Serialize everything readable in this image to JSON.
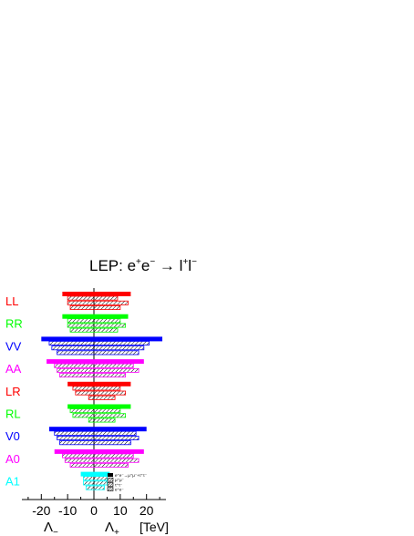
{
  "chart_data": {
    "type": "bar",
    "title": {
      "prefix": "LEP:  e",
      "sup1": "+",
      "mid1": "e",
      "sup2": "−",
      "arrow": " →  l",
      "sup3": "+",
      "mid2": "l",
      "sup4": "−"
    },
    "xlim": [
      -26,
      26
    ],
    "x_ticks": [
      -20,
      -10,
      0,
      10,
      20
    ],
    "x_tick_labels": [
      "-20",
      "-10",
      "0",
      "10",
      "20"
    ],
    "xlabel_minus": "Λ",
    "xlabel_minus_sub": "−",
    "xlabel_plus": "Λ",
    "xlabel_plus_sub": "+",
    "xlabel_unit": "[TeV]",
    "legend_entries": [
      "e⁺e⁻→μ⁺μ⁻+τ⁺τ⁻",
      "μ⁺μ⁻",
      "τ⁺τ⁻",
      "e⁺e⁻"
    ],
    "models": [
      {
        "name": "LL",
        "color": "#ff0000",
        "bars": [
          [
            -12,
            14
          ],
          [
            -10,
            9
          ],
          [
            -10,
            13
          ],
          [
            -9,
            10
          ]
        ]
      },
      {
        "name": "RR",
        "color": "#00ff00",
        "bars": [
          [
            -12,
            13
          ],
          [
            -10,
            10
          ],
          [
            -10,
            12
          ],
          [
            -9,
            9
          ]
        ]
      },
      {
        "name": "VV",
        "color": "#0000ff",
        "bars": [
          [
            -20,
            26
          ],
          [
            -17,
            21
          ],
          [
            -16,
            19
          ],
          [
            -14,
            17
          ]
        ]
      },
      {
        "name": "AA",
        "color": "#ff00ff",
        "bars": [
          [
            -18,
            19
          ],
          [
            -15,
            15
          ],
          [
            -14,
            17
          ],
          [
            -13,
            12
          ]
        ]
      },
      {
        "name": "LR",
        "color": "#ff0000",
        "bars": [
          [
            -10,
            14
          ],
          [
            -8,
            10
          ],
          [
            -7,
            12
          ],
          [
            -2,
            8
          ]
        ]
      },
      {
        "name": "RL",
        "color": "#00ff00",
        "bars": [
          [
            -10,
            14
          ],
          [
            -9,
            10
          ],
          [
            -8,
            12
          ],
          [
            -2,
            8
          ]
        ]
      },
      {
        "name": "V0",
        "color": "#0000ff",
        "bars": [
          [
            -17,
            20
          ],
          [
            -15,
            16
          ],
          [
            -14,
            17
          ],
          [
            -13,
            14
          ]
        ]
      },
      {
        "name": "A0",
        "color": "#ff00ff",
        "bars": [
          [
            -15,
            19
          ],
          [
            -12,
            15
          ],
          [
            -11,
            17
          ],
          [
            -9,
            13
          ]
        ]
      },
      {
        "name": "A1",
        "color": "#00ffff",
        "bars": [
          [
            -5,
            6
          ],
          [
            -4,
            5
          ],
          [
            -4,
            5
          ],
          [
            -3,
            4
          ]
        ]
      }
    ]
  }
}
